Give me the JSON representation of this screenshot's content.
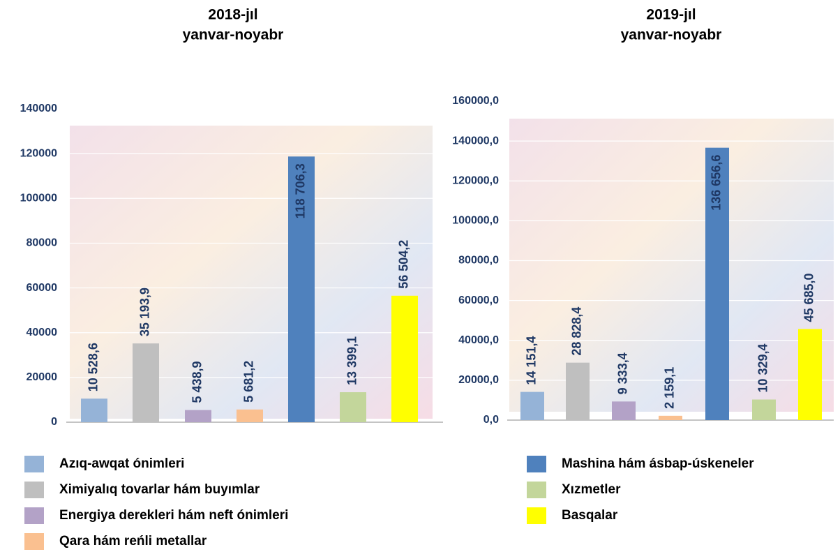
{
  "chart_data": [
    {
      "type": "bar",
      "title": [
        "2018-jıl",
        "yanvar-noyabr"
      ],
      "values": [
        10528.6,
        35193.9,
        5438.9,
        5681.2,
        118706.3,
        13399.1,
        56504.2
      ],
      "value_labels": [
        "10 528,6",
        "35 193,9",
        "5 438,9",
        "5 681,2",
        "118 706,3",
        "13 399,1",
        "56 504,2"
      ],
      "ylim": [
        0,
        140000
      ],
      "yticks": [
        0,
        20000,
        40000,
        60000,
        80000,
        100000,
        120000,
        140000
      ],
      "grid": true
    },
    {
      "type": "bar",
      "title": [
        "2019-jıl",
        "yanvar-noyabr"
      ],
      "values": [
        14151.4,
        28828.4,
        9333.4,
        2159.1,
        136656.6,
        10329.4,
        45685.0
      ],
      "value_labels": [
        "14 151,4",
        "28 828,4",
        "9 333,4",
        "2 159,1",
        "136 656,6",
        "10 329,4",
        "45 685,0"
      ],
      "ylim": [
        0,
        160000
      ],
      "yticks": [
        {
          "value": 0,
          "label": "0,0"
        },
        {
          "value": 20000,
          "label": "20000,0"
        },
        {
          "value": 40000,
          "label": "40000,0"
        },
        {
          "value": 60000,
          "label": "60000,0"
        },
        {
          "value": 80000,
          "label": "80000,0"
        },
        {
          "value": 100000,
          "label": "100000,0"
        },
        {
          "value": 120000,
          "label": "120000,0"
        },
        {
          "value": 140000,
          "label": "140000,0"
        },
        {
          "value": 160000,
          "label": "160000,0"
        }
      ],
      "grid": true
    }
  ],
  "legend": [
    {
      "name": "Azıq-awqat ónimleri",
      "color": "#95b3d7"
    },
    {
      "name": "Ximiyalıq tovarlar hám buyımlar",
      "color": "#bfbfbf"
    },
    {
      "name": "Energiya derekleri hám neft ónimleri",
      "color": "#b3a2c7"
    },
    {
      "name": "Qara hám reńli metallar",
      "color": "#fac090"
    },
    {
      "name": "Mashina hám ásbap-úskeneler",
      "color": "#4f81bd"
    },
    {
      "name": "Xızmetler",
      "color": "#c3d69b"
    },
    {
      "name": "Basqalar",
      "color": "#ffff00"
    }
  ]
}
